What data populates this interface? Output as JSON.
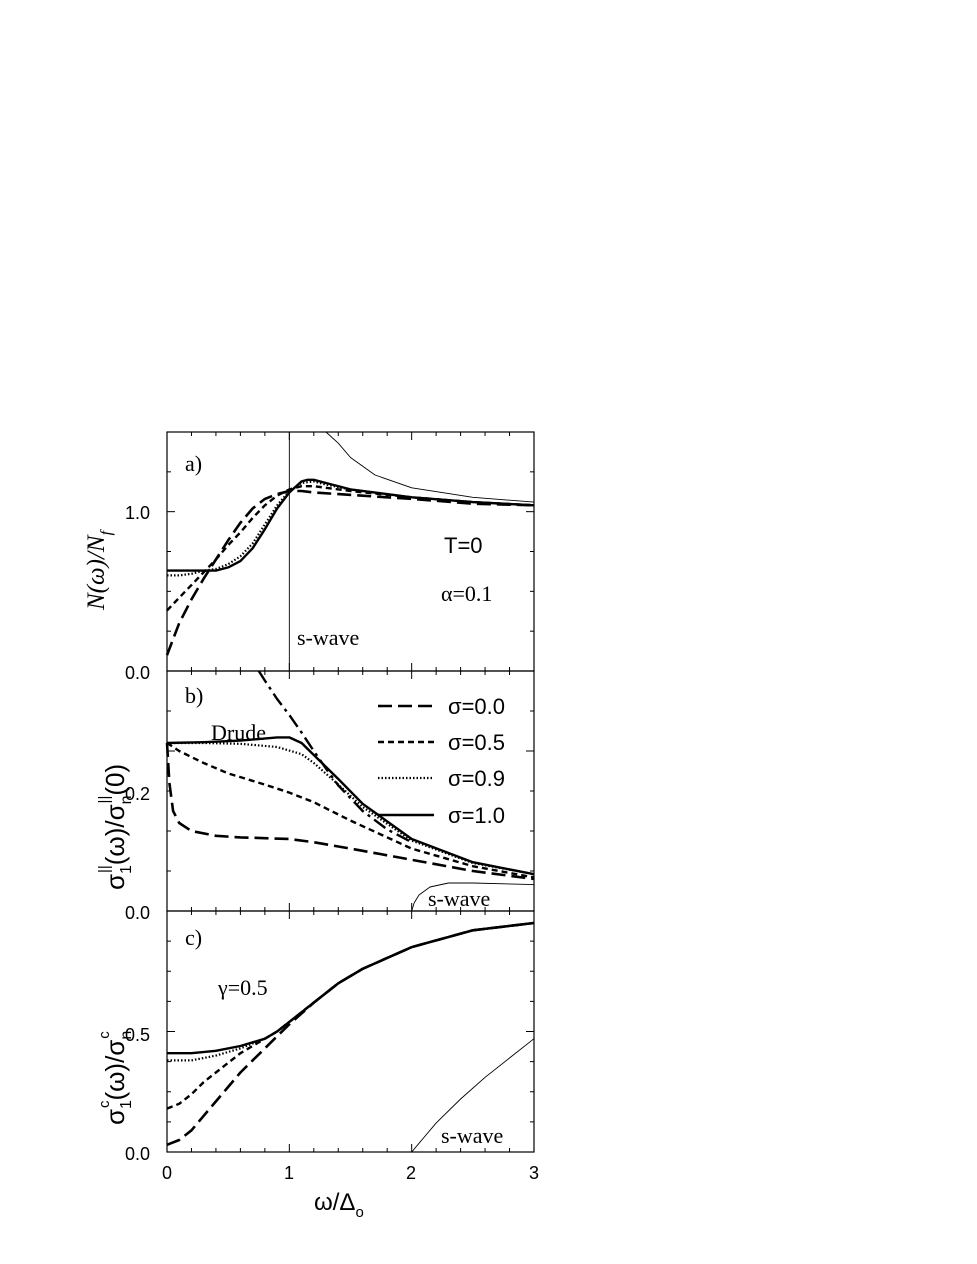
{
  "x_axis": {
    "label": "ω/Δ",
    "label_sub": "o",
    "ticks": [
      "0",
      "1",
      "2",
      "3"
    ],
    "xlim": [
      0,
      3
    ]
  },
  "panels": {
    "a": {
      "tag": "a)",
      "ylabel": "N(ω)/N",
      "ylabel_sub": "f",
      "ylim": [
        0,
        1.5
      ],
      "ticks": [
        "0.0",
        "1.0"
      ],
      "annot_T": "T=0",
      "annot_alpha": "α=0.1",
      "swave": "s-wave"
    },
    "b": {
      "tag": "b)",
      "ylabel": "σ",
      "ylabel_sub1": "1",
      "ylabel_sup1": "||",
      "ylabel_mid": "(ω)/σ",
      "ylabel_sub2": "n",
      "ylabel_sup2": "||",
      "ylabel_end": "(0)",
      "ylim": [
        0,
        0.3
      ],
      "ticks": [
        "0.0",
        "0.2"
      ],
      "drude": "Drude",
      "swave": "s-wave"
    },
    "c": {
      "tag": "c)",
      "ylabel": "σ",
      "ylabel_sub1": "1",
      "ylabel_sup1": "c",
      "ylabel_mid": "(ω)/σ",
      "ylabel_sub2": "n",
      "ylabel_sup2": "c",
      "ylim": [
        0,
        1.0
      ],
      "ticks": [
        "0.0",
        "0.5"
      ],
      "annot_gamma": "γ=0.5",
      "swave": "s-wave"
    }
  },
  "legend": [
    "σ=0.0",
    "σ=0.5",
    "σ=0.9",
    "σ=1.0"
  ],
  "chart_data": [
    {
      "type": "line",
      "panel": "a",
      "xlabel": "ω/Δo",
      "ylabel": "N(ω)/Nf",
      "xlim": [
        0,
        3
      ],
      "ylim": [
        0,
        1.5
      ],
      "series": [
        {
          "name": "σ=0.0",
          "style": "long-dash",
          "points": [
            [
              0,
              0.1
            ],
            [
              0.1,
              0.3
            ],
            [
              0.2,
              0.45
            ],
            [
              0.3,
              0.58
            ],
            [
              0.4,
              0.7
            ],
            [
              0.5,
              0.82
            ],
            [
              0.6,
              0.93
            ],
            [
              0.7,
              1.02
            ],
            [
              0.8,
              1.08
            ],
            [
              0.9,
              1.11
            ],
            [
              1.0,
              1.13
            ],
            [
              1.1,
              1.13
            ],
            [
              1.2,
              1.12
            ],
            [
              1.4,
              1.11
            ],
            [
              1.6,
              1.1
            ],
            [
              2.0,
              1.08
            ],
            [
              2.5,
              1.05
            ],
            [
              3.0,
              1.04
            ]
          ]
        },
        {
          "name": "σ=0.5",
          "style": "short-dash",
          "points": [
            [
              0,
              0.38
            ],
            [
              0.1,
              0.46
            ],
            [
              0.2,
              0.54
            ],
            [
              0.3,
              0.62
            ],
            [
              0.4,
              0.7
            ],
            [
              0.5,
              0.79
            ],
            [
              0.6,
              0.87
            ],
            [
              0.7,
              0.96
            ],
            [
              0.8,
              1.04
            ],
            [
              0.9,
              1.1
            ],
            [
              1.0,
              1.14
            ],
            [
              1.1,
              1.16
            ],
            [
              1.2,
              1.16
            ],
            [
              1.3,
              1.15
            ],
            [
              1.5,
              1.13
            ],
            [
              2.0,
              1.09
            ],
            [
              2.5,
              1.06
            ],
            [
              3.0,
              1.04
            ]
          ]
        },
        {
          "name": "σ=0.9",
          "style": "dotted",
          "points": [
            [
              0,
              0.6
            ],
            [
              0.1,
              0.6
            ],
            [
              0.2,
              0.61
            ],
            [
              0.3,
              0.63
            ],
            [
              0.4,
              0.64
            ],
            [
              0.5,
              0.67
            ],
            [
              0.6,
              0.72
            ],
            [
              0.7,
              0.8
            ],
            [
              0.8,
              0.92
            ],
            [
              0.9,
              1.04
            ],
            [
              1.0,
              1.13
            ],
            [
              1.1,
              1.18
            ],
            [
              1.2,
              1.19
            ],
            [
              1.3,
              1.17
            ],
            [
              1.5,
              1.14
            ],
            [
              2.0,
              1.09
            ],
            [
              2.5,
              1.06
            ],
            [
              3.0,
              1.04
            ]
          ]
        },
        {
          "name": "σ=1.0",
          "style": "solid",
          "points": [
            [
              0,
              0.63
            ],
            [
              0.1,
              0.63
            ],
            [
              0.2,
              0.63
            ],
            [
              0.3,
              0.63
            ],
            [
              0.4,
              0.63
            ],
            [
              0.5,
              0.65
            ],
            [
              0.6,
              0.69
            ],
            [
              0.7,
              0.77
            ],
            [
              0.8,
              0.89
            ],
            [
              0.9,
              1.02
            ],
            [
              1.0,
              1.12
            ],
            [
              1.1,
              1.19
            ],
            [
              1.15,
              1.2
            ],
            [
              1.2,
              1.2
            ],
            [
              1.3,
              1.18
            ],
            [
              1.5,
              1.14
            ],
            [
              2.0,
              1.09
            ],
            [
              2.5,
              1.06
            ],
            [
              3.0,
              1.04
            ]
          ]
        },
        {
          "name": "s-wave",
          "style": "thin",
          "points": [
            [
              1.0,
              1.5
            ],
            [
              1.3,
              1.5
            ],
            [
              1.4,
              1.43
            ],
            [
              1.5,
              1.34
            ],
            [
              1.7,
              1.23
            ],
            [
              2.0,
              1.15
            ],
            [
              2.5,
              1.09
            ],
            [
              3.0,
              1.06
            ]
          ]
        }
      ]
    },
    {
      "type": "line",
      "panel": "b",
      "ylabel": "σ1||(ω)/σn||(0)",
      "xlim": [
        0,
        3
      ],
      "ylim": [
        0,
        0.3
      ],
      "series": [
        {
          "name": "σ=0.0",
          "style": "long-dash",
          "points": [
            [
              0,
              0.21
            ],
            [
              0.02,
              0.16
            ],
            [
              0.05,
              0.125
            ],
            [
              0.1,
              0.11
            ],
            [
              0.2,
              0.1
            ],
            [
              0.4,
              0.094
            ],
            [
              0.6,
              0.092
            ],
            [
              0.8,
              0.091
            ],
            [
              1.0,
              0.09
            ],
            [
              1.2,
              0.086
            ],
            [
              1.5,
              0.078
            ],
            [
              2.0,
              0.064
            ],
            [
              2.5,
              0.05
            ],
            [
              3.0,
              0.04
            ]
          ]
        },
        {
          "name": "σ=0.5",
          "style": "short-dash",
          "points": [
            [
              0,
              0.21
            ],
            [
              0.1,
              0.2
            ],
            [
              0.3,
              0.185
            ],
            [
              0.5,
              0.172
            ],
            [
              0.8,
              0.158
            ],
            [
              1.0,
              0.148
            ],
            [
              1.2,
              0.136
            ],
            [
              1.5,
              0.113
            ],
            [
              2.0,
              0.078
            ],
            [
              2.5,
              0.056
            ],
            [
              3.0,
              0.042
            ]
          ]
        },
        {
          "name": "σ=0.9",
          "style": "dotted",
          "points": [
            [
              0,
              0.21
            ],
            [
              0.3,
              0.21
            ],
            [
              0.6,
              0.209
            ],
            [
              0.9,
              0.205
            ],
            [
              1.1,
              0.196
            ],
            [
              1.2,
              0.185
            ],
            [
              1.4,
              0.158
            ],
            [
              1.6,
              0.13
            ],
            [
              2.0,
              0.088
            ],
            [
              2.5,
              0.06
            ],
            [
              3.0,
              0.046
            ]
          ]
        },
        {
          "name": "σ=1.0",
          "style": "solid",
          "points": [
            [
              0,
              0.21
            ],
            [
              0.3,
              0.211
            ],
            [
              0.6,
              0.213
            ],
            [
              0.9,
              0.217
            ],
            [
              1.0,
              0.217
            ],
            [
              1.1,
              0.21
            ],
            [
              1.2,
              0.195
            ],
            [
              1.4,
              0.165
            ],
            [
              1.6,
              0.134
            ],
            [
              2.0,
              0.09
            ],
            [
              2.5,
              0.061
            ],
            [
              3.0,
              0.046
            ]
          ]
        },
        {
          "name": "Drude",
          "style": "dash-dot",
          "points": [
            [
              0.75,
              0.3
            ],
            [
              0.8,
              0.288
            ],
            [
              0.9,
              0.265
            ],
            [
              1.0,
              0.245
            ],
            [
              1.1,
              0.223
            ],
            [
              1.2,
              0.2
            ],
            [
              1.3,
              0.178
            ],
            [
              1.4,
              0.157
            ],
            [
              1.6,
              0.125
            ],
            [
              1.8,
              0.102
            ],
            [
              2.0,
              0.086
            ]
          ]
        },
        {
          "name": "s-wave",
          "style": "thin",
          "points": [
            [
              2.0,
              0.0
            ],
            [
              2.02,
              0.01
            ],
            [
              2.06,
              0.02
            ],
            [
              2.15,
              0.03
            ],
            [
              2.3,
              0.035
            ],
            [
              2.5,
              0.035
            ],
            [
              3.0,
              0.033
            ]
          ]
        }
      ]
    },
    {
      "type": "line",
      "panel": "c",
      "ylabel": "σ1c(ω)/σnc",
      "xlim": [
        0,
        3
      ],
      "ylim": [
        0,
        1.0
      ],
      "series": [
        {
          "name": "σ=0.0",
          "style": "long-dash",
          "points": [
            [
              0,
              0.03
            ],
            [
              0.1,
              0.05
            ],
            [
              0.2,
              0.09
            ],
            [
              0.3,
              0.15
            ],
            [
              0.4,
              0.21
            ],
            [
              0.5,
              0.27
            ],
            [
              0.6,
              0.33
            ],
            [
              0.7,
              0.38
            ],
            [
              0.8,
              0.43
            ],
            [
              0.9,
              0.48
            ],
            [
              1.0,
              0.53
            ],
            [
              1.2,
              0.62
            ],
            [
              1.4,
              0.7
            ],
            [
              1.6,
              0.76
            ],
            [
              2.0,
              0.85
            ],
            [
              2.5,
              0.92
            ],
            [
              3.0,
              0.95
            ]
          ]
        },
        {
          "name": "σ=0.5",
          "style": "short-dash",
          "points": [
            [
              0,
              0.18
            ],
            [
              0.1,
              0.2
            ],
            [
              0.2,
              0.24
            ],
            [
              0.3,
              0.29
            ],
            [
              0.4,
              0.33
            ],
            [
              0.5,
              0.37
            ],
            [
              0.6,
              0.41
            ],
            [
              0.7,
              0.44
            ],
            [
              0.8,
              0.47
            ],
            [
              0.9,
              0.5
            ],
            [
              1.0,
              0.54
            ],
            [
              1.2,
              0.62
            ],
            [
              1.4,
              0.7
            ],
            [
              1.6,
              0.76
            ],
            [
              2.0,
              0.85
            ],
            [
              2.5,
              0.92
            ],
            [
              3.0,
              0.95
            ]
          ]
        },
        {
          "name": "σ=0.9",
          "style": "dotted",
          "points": [
            [
              0,
              0.38
            ],
            [
              0.2,
              0.38
            ],
            [
              0.4,
              0.4
            ],
            [
              0.6,
              0.43
            ],
            [
              0.8,
              0.47
            ],
            [
              0.9,
              0.5
            ],
            [
              1.0,
              0.54
            ],
            [
              1.2,
              0.62
            ],
            [
              1.4,
              0.7
            ],
            [
              1.6,
              0.76
            ],
            [
              2.0,
              0.85
            ],
            [
              2.5,
              0.92
            ],
            [
              3.0,
              0.95
            ]
          ]
        },
        {
          "name": "σ=1.0",
          "style": "solid",
          "points": [
            [
              0,
              0.41
            ],
            [
              0.2,
              0.41
            ],
            [
              0.4,
              0.42
            ],
            [
              0.6,
              0.44
            ],
            [
              0.8,
              0.47
            ],
            [
              0.9,
              0.5
            ],
            [
              1.0,
              0.54
            ],
            [
              1.2,
              0.62
            ],
            [
              1.4,
              0.7
            ],
            [
              1.6,
              0.76
            ],
            [
              2.0,
              0.85
            ],
            [
              2.5,
              0.92
            ],
            [
              3.0,
              0.95
            ]
          ]
        },
        {
          "name": "s-wave",
          "style": "thin",
          "points": [
            [
              2.0,
              0.0
            ],
            [
              2.1,
              0.06
            ],
            [
              2.2,
              0.12
            ],
            [
              2.4,
              0.22
            ],
            [
              2.6,
              0.31
            ],
            [
              2.8,
              0.39
            ],
            [
              3.0,
              0.47
            ]
          ]
        }
      ]
    }
  ]
}
